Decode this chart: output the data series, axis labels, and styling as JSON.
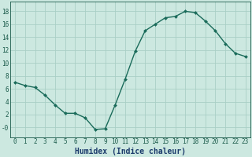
{
  "x": [
    0,
    1,
    2,
    3,
    4,
    5,
    6,
    7,
    8,
    9,
    10,
    11,
    12,
    13,
    14,
    15,
    16,
    17,
    18,
    19,
    20,
    21,
    22,
    23
  ],
  "y": [
    7.0,
    6.5,
    6.2,
    5.0,
    3.5,
    2.2,
    2.2,
    1.5,
    -0.3,
    -0.2,
    3.5,
    7.5,
    11.8,
    15.0,
    16.0,
    17.0,
    17.2,
    18.0,
    17.8,
    16.5,
    15.0,
    13.0,
    11.5,
    11.0
  ],
  "xlabel": "Humidex (Indice chaleur)",
  "line_color": "#1a6b5a",
  "marker": "D",
  "marker_size": 2.0,
  "bg_color": "#cce8e0",
  "grid_color": "#aacfc6",
  "tick_label_color": "#1a5a4a",
  "xlabel_color": "#1a3a6b",
  "ylim": [
    -1.5,
    19.5
  ],
  "xlim": [
    -0.5,
    23.5
  ],
  "yticks": [
    0,
    2,
    4,
    6,
    8,
    10,
    12,
    14,
    16,
    18
  ],
  "ytick_labels": [
    "-0",
    "2",
    "4",
    "6",
    "8",
    "10",
    "12",
    "14",
    "16",
    "18"
  ],
  "xticks": [
    0,
    1,
    2,
    3,
    4,
    5,
    6,
    7,
    8,
    9,
    10,
    11,
    12,
    13,
    14,
    15,
    16,
    17,
    18,
    19,
    20,
    21,
    22,
    23
  ],
  "font_size": 5.5,
  "xlabel_fontsize": 7.0,
  "linewidth": 1.0
}
